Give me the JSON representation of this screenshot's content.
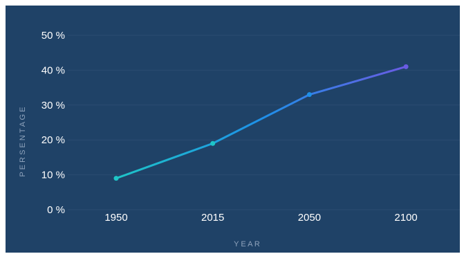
{
  "chart_data": {
    "type": "line",
    "title": "",
    "xlabel": "Y E A R",
    "ylabel": "P E R S E N T A G E",
    "categories": [
      "1950",
      "2015",
      "2050",
      "2100"
    ],
    "series": [
      {
        "values": [
          9,
          19,
          33,
          41
        ]
      }
    ],
    "ylim": [
      0,
      50
    ],
    "yticks": [
      0,
      10,
      20,
      30,
      40,
      50
    ],
    "ytick_labels": [
      "0 %",
      "10 %",
      "20 %",
      "30 %",
      "40 %",
      "50 %"
    ],
    "grid": true,
    "legend": "none",
    "colors": {
      "background": "#1f4267",
      "grid": "#2b4c72",
      "line_start": "#1ec5c7",
      "line_mid": "#1e90e8",
      "line_end": "#6a5be3",
      "tick_text": "#ffffff",
      "axis_title": "#8fa3bc"
    }
  }
}
